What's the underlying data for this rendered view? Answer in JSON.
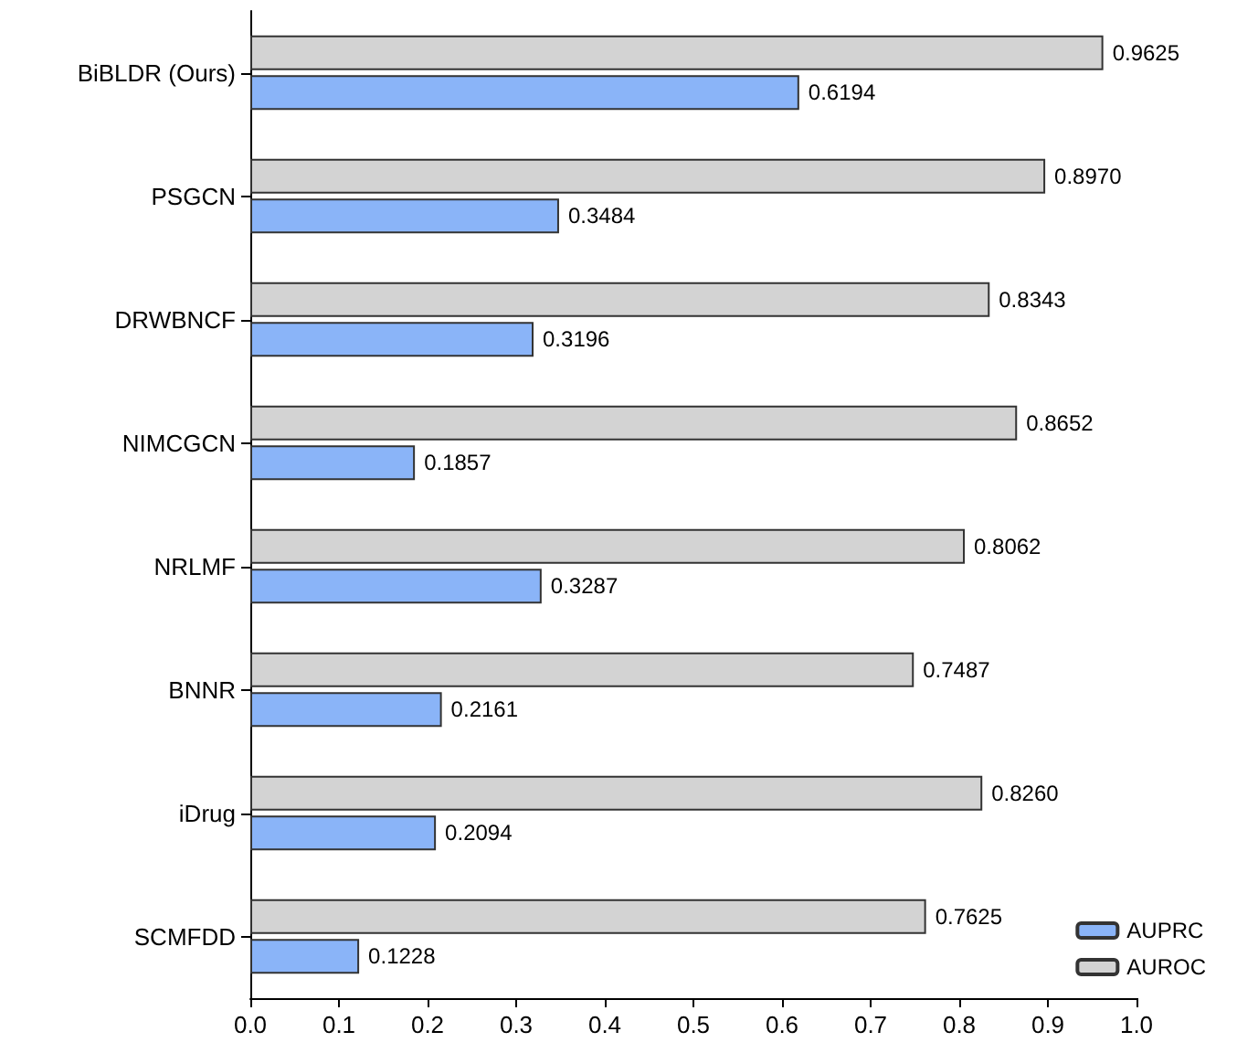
{
  "chart_data": {
    "type": "bar",
    "orientation": "horizontal",
    "categories": [
      "BiBLDR (Ours)",
      "PSGCN",
      "DRWBNCF",
      "NIMCGCN",
      "NRLMF",
      "BNNR",
      "iDrug",
      "SCMFDD"
    ],
    "series": [
      {
        "name": "AUPRC",
        "color": "#8ab4f8",
        "values": [
          0.6194,
          0.3484,
          0.3196,
          0.1857,
          0.3287,
          0.2161,
          0.2094,
          0.1228
        ],
        "value_labels": [
          "0.6194",
          "0.3484",
          "0.3196",
          "0.1857",
          "0.3287",
          "0.2161",
          "0.2094",
          "0.1228"
        ]
      },
      {
        "name": "AUROC",
        "color": "#d3d3d3",
        "values": [
          0.9625,
          0.897,
          0.8343,
          0.8652,
          0.8062,
          0.7487,
          0.826,
          0.7625
        ],
        "value_labels": [
          "0.9625",
          "0.8970",
          "0.8343",
          "0.8652",
          "0.8062",
          "0.7487",
          "0.8260",
          "0.7625"
        ]
      }
    ],
    "xlim": [
      0,
      1
    ],
    "xticks": [
      {
        "value": 0,
        "label": "0.0"
      },
      {
        "value": 0.1,
        "label": "0.1"
      },
      {
        "value": 0.2,
        "label": "0.2"
      },
      {
        "value": 0.3,
        "label": "0.3"
      },
      {
        "value": 0.4,
        "label": "0.4"
      },
      {
        "value": 0.5,
        "label": "0.5"
      },
      {
        "value": 0.6,
        "label": "0.6"
      },
      {
        "value": 0.7,
        "label": "0.7"
      },
      {
        "value": 0.8,
        "label": "0.8"
      },
      {
        "value": 0.9,
        "label": "0.9"
      },
      {
        "value": 1,
        "label": "1.0"
      }
    ],
    "grid": false,
    "legend": "bottom right"
  }
}
